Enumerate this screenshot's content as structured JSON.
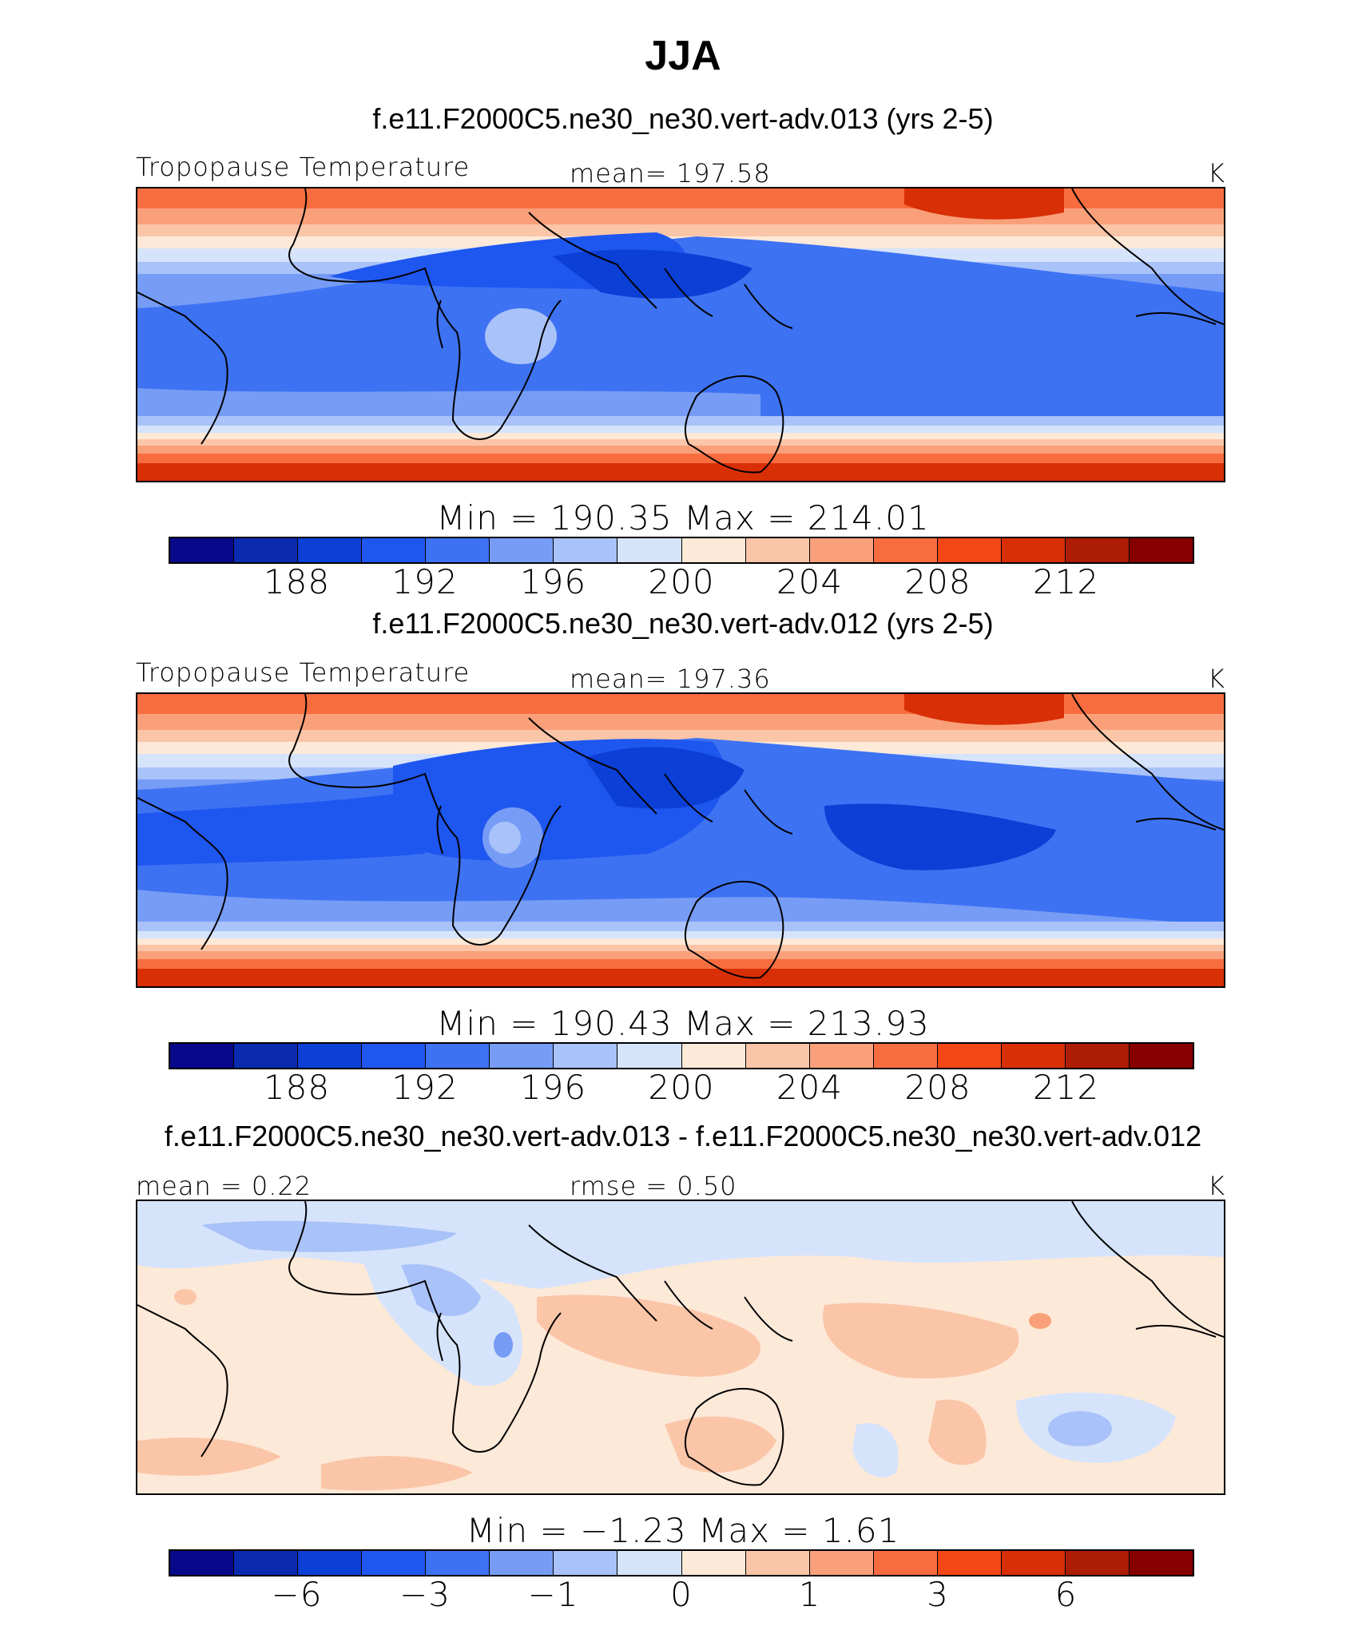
{
  "figure": {
    "title": "JJA"
  },
  "panels": [
    {
      "title": "f.e11.F2000C5.ne30_ne30.vert-adv.013 (yrs 2-5)",
      "left_label": "Tropopause Temperature",
      "center_label": "mean=  197.58",
      "units": "K",
      "minmax": "Min  =  190.35  Max  =  214.01",
      "field_kind": "absolute",
      "ticks": [
        "188",
        "192",
        "196",
        "200",
        "204",
        "208",
        "212"
      ]
    },
    {
      "title": "f.e11.F2000C5.ne30_ne30.vert-adv.012 (yrs 2-5)",
      "left_label": "Tropopause Temperature",
      "center_label": "mean=  197.36",
      "units": "K",
      "minmax": "Min  =  190.43  Max  =  213.93",
      "field_kind": "absolute",
      "ticks": [
        "188",
        "192",
        "196",
        "200",
        "204",
        "208",
        "212"
      ]
    },
    {
      "title": "f.e11.F2000C5.ne30_ne30.vert-adv.013 - f.e11.F2000C5.ne30_ne30.vert-adv.012",
      "left_label": "mean =    0.22",
      "center_label": "rmse =    0.50",
      "units": "K",
      "minmax": "Min  =    −1.23  Max  =     1.61",
      "field_kind": "difference",
      "ticks": [
        "−6",
        "−3",
        "−1",
        "0",
        "1",
        "3",
        "6"
      ]
    }
  ],
  "colorbar_colors": [
    "#08088a",
    "#0a2ab0",
    "#0b3fd6",
    "#1e56f0",
    "#3d72f3",
    "#779cf6",
    "#a9c2f9",
    "#d6e4fb",
    "#fde9d8",
    "#fbc5a8",
    "#f9a07a",
    "#f86d40",
    "#f44716",
    "#d92f06",
    "#ad1c04",
    "#870000"
  ]
}
